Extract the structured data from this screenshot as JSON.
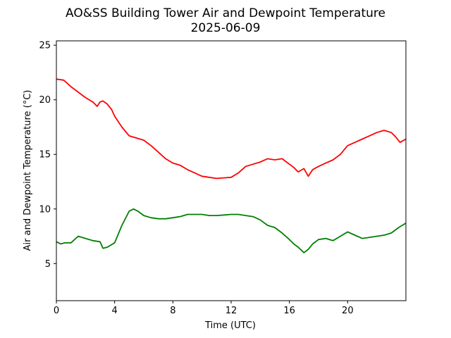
{
  "chart_data": {
    "type": "line",
    "title": "AO&SS Building Tower Air and Dewpoint Temperature",
    "subtitle": "2025-06-09",
    "xlabel": "Time (UTC)",
    "ylabel": "Air and Dewpoint Temperature (°C)",
    "xlim": [
      0,
      24
    ],
    "ylim": [
      1.6,
      25.4
    ],
    "xticks": [
      0,
      4,
      8,
      12,
      16,
      20
    ],
    "yticks": [
      5,
      10,
      15,
      20,
      25
    ],
    "grid": false,
    "legend": "none",
    "series": [
      {
        "color": "#ff0000",
        "x": [
          0,
          0.5,
          1,
          1.5,
          2,
          2.5,
          2.8,
          3,
          3.2,
          3.5,
          3.8,
          4,
          4.5,
          5,
          5.5,
          6,
          6.5,
          7,
          7.5,
          8,
          8.5,
          9,
          9.5,
          10,
          10.5,
          11,
          11.5,
          12,
          12.5,
          13,
          13.5,
          14,
          14.5,
          15,
          15.5,
          16,
          16.3,
          16.6,
          17,
          17.3,
          17.6,
          18,
          18.5,
          19,
          19.5,
          20,
          20.5,
          21,
          21.5,
          22,
          22.5,
          23,
          23.3,
          23.6,
          24
        ],
        "y": [
          21.9,
          21.8,
          21.2,
          20.7,
          20.2,
          19.8,
          19.4,
          19.8,
          19.9,
          19.6,
          19.1,
          18.5,
          17.5,
          16.7,
          16.5,
          16.3,
          15.8,
          15.2,
          14.6,
          14.2,
          14.0,
          13.6,
          13.3,
          13.0,
          12.9,
          12.8,
          12.85,
          12.9,
          13.3,
          13.9,
          14.1,
          14.3,
          14.6,
          14.5,
          14.6,
          14.1,
          13.8,
          13.4,
          13.7,
          13.0,
          13.6,
          13.9,
          14.2,
          14.5,
          15.0,
          15.8,
          16.1,
          16.4,
          16.7,
          17.0,
          17.2,
          17.0,
          16.6,
          16.1,
          16.4
        ]
      },
      {
        "color": "#008000",
        "x": [
          0,
          0.3,
          0.6,
          1,
          1.5,
          2,
          2.5,
          3,
          3.2,
          3.5,
          4,
          4.5,
          5,
          5.3,
          5.6,
          6,
          6.5,
          7,
          7.5,
          8,
          8.5,
          9,
          9.5,
          10,
          10.5,
          11,
          11.5,
          12,
          12.5,
          13,
          13.5,
          14,
          14.5,
          15,
          15.5,
          16,
          16.3,
          16.6,
          17,
          17.3,
          17.6,
          18,
          18.5,
          19,
          19.5,
          20,
          20.5,
          21,
          21.5,
          22,
          22.5,
          23,
          23.5,
          24
        ],
        "y": [
          7.0,
          6.8,
          6.9,
          6.9,
          7.5,
          7.3,
          7.1,
          7.0,
          6.4,
          6.5,
          6.9,
          8.5,
          9.8,
          10.0,
          9.8,
          9.4,
          9.2,
          9.1,
          9.1,
          9.2,
          9.3,
          9.5,
          9.5,
          9.5,
          9.4,
          9.4,
          9.45,
          9.5,
          9.5,
          9.4,
          9.3,
          9.0,
          8.5,
          8.3,
          7.8,
          7.2,
          6.8,
          6.5,
          6.0,
          6.3,
          6.8,
          7.2,
          7.3,
          7.1,
          7.5,
          7.9,
          7.6,
          7.3,
          7.4,
          7.5,
          7.6,
          7.8,
          8.3,
          8.7
        ]
      }
    ]
  }
}
